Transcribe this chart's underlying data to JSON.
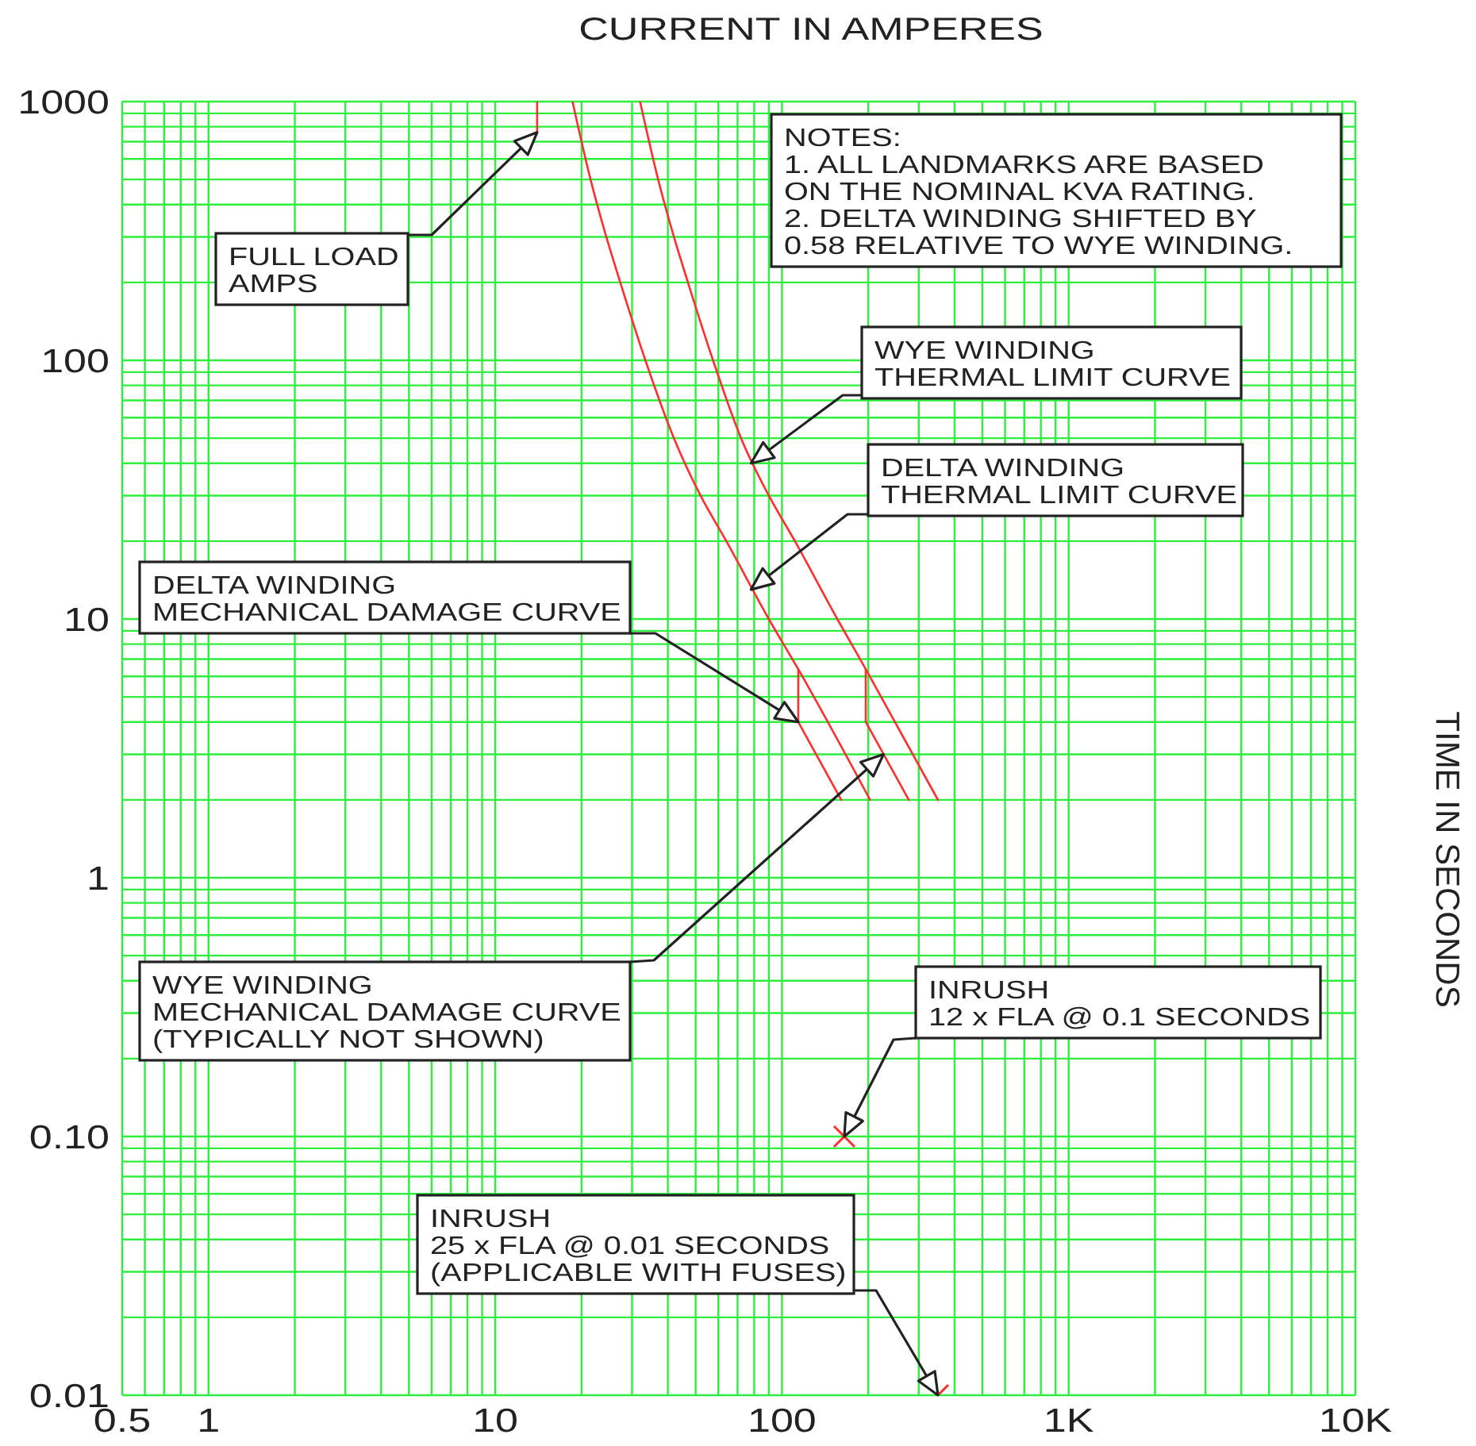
{
  "chart_data": {
    "type": "line",
    "xlabel": "CURRENT IN AMPERES",
    "ylabel": "TIME IN SECONDS",
    "log": "xy",
    "grid": true,
    "xlim": [
      0.5,
      10000
    ],
    "xticks": [
      0.5,
      {
        "value": 0.6,
        "label": null
      },
      {
        "value": 0.7,
        "label": null
      },
      {
        "value": 0.8,
        "label": null
      },
      {
        "value": 0.9,
        "label": null
      },
      1,
      {
        "value": 2,
        "label": null
      },
      {
        "value": 3,
        "label": null
      },
      {
        "value": 4,
        "label": null
      },
      {
        "value": 5,
        "label": null
      },
      {
        "value": 6,
        "label": null
      },
      {
        "value": 7,
        "label": null
      },
      {
        "value": 8,
        "label": null
      },
      {
        "value": 9,
        "label": null
      },
      10,
      {
        "value": 20,
        "label": null
      },
      {
        "value": 30,
        "label": null
      },
      {
        "value": 40,
        "label": null
      },
      {
        "value": 50,
        "label": null
      },
      {
        "value": 60,
        "label": null
      },
      {
        "value": 70,
        "label": null
      },
      {
        "value": 80,
        "label": null
      },
      {
        "value": 90,
        "label": null
      },
      100,
      {
        "value": 200,
        "label": null
      },
      {
        "value": 300,
        "label": null
      },
      {
        "value": 400,
        "label": null
      },
      {
        "value": 500,
        "label": null
      },
      {
        "value": 600,
        "label": null
      },
      {
        "value": 700,
        "label": null
      },
      {
        "value": 800,
        "label": null
      },
      {
        "value": 900,
        "label": null
      },
      {
        "value": 1000,
        "label": "1K"
      },
      {
        "value": 2000,
        "label": null
      },
      {
        "value": 3000,
        "label": null
      },
      {
        "value": 4000,
        "label": null
      },
      {
        "value": 5000,
        "label": null
      },
      {
        "value": 6000,
        "label": null
      },
      {
        "value": 7000,
        "label": null
      },
      {
        "value": 8000,
        "label": null
      },
      {
        "value": 9000,
        "label": null
      },
      {
        "value": 10000,
        "label": "10K"
      }
    ],
    "ylim": [
      0.01,
      1000
    ],
    "yticks": [
      0.01,
      {
        "value": 0.02,
        "label": null
      },
      {
        "value": 0.03,
        "label": null
      },
      {
        "value": 0.04,
        "label": null
      },
      {
        "value": 0.05,
        "label": null
      },
      {
        "value": 0.06,
        "label": null
      },
      {
        "value": 0.07,
        "label": null
      },
      {
        "value": 0.08,
        "label": null
      },
      {
        "value": 0.09,
        "label": null
      },
      {
        "value": 0.1,
        "label": "0.10"
      },
      {
        "value": 0.2,
        "label": null
      },
      {
        "value": 0.3,
        "label": null
      },
      {
        "value": 0.4,
        "label": null
      },
      {
        "value": 0.5,
        "label": null
      },
      {
        "value": 0.6,
        "label": null
      },
      {
        "value": 0.7,
        "label": null
      },
      {
        "value": 0.8,
        "label": null
      },
      {
        "value": 0.9,
        "label": null
      },
      1,
      {
        "value": 2,
        "label": null
      },
      {
        "value": 3,
        "label": null
      },
      {
        "value": 4,
        "label": null
      },
      {
        "value": 5,
        "label": null
      },
      {
        "value": 6,
        "label": null
      },
      {
        "value": 7,
        "label": null
      },
      {
        "value": 8,
        "label": null
      },
      {
        "value": 9,
        "label": null
      },
      10,
      {
        "value": 20,
        "label": null
      },
      {
        "value": 30,
        "label": null
      },
      {
        "value": 40,
        "label": null
      },
      {
        "value": 50,
        "label": null
      },
      {
        "value": 60,
        "label": null
      },
      {
        "value": 70,
        "label": null
      },
      {
        "value": 80,
        "label": null
      },
      {
        "value": 90,
        "label": null
      },
      100,
      {
        "value": 200,
        "label": null
      },
      {
        "value": 300,
        "label": null
      },
      {
        "value": 400,
        "label": null
      },
      {
        "value": 500,
        "label": null
      },
      {
        "value": 600,
        "label": null
      },
      {
        "value": 700,
        "label": null
      },
      {
        "value": 800,
        "label": null
      },
      {
        "value": 900,
        "label": null
      },
      1000
    ],
    "series": [
      {
        "color": "#ff3030",
        "x": [
          14,
          14
        ],
        "values": [
          1000,
          760
        ]
      },
      {
        "color": "#ff3030",
        "x": [
          32,
          37,
          42,
          47,
          57.5,
          72,
          90,
          111,
          156,
          196,
          350
        ],
        "values": [
          1000,
          500,
          300,
          200,
          100,
          50,
          30,
          20,
          10,
          6.4,
          2
        ]
      },
      {
        "color": "#ff3030",
        "x": [
          18.6,
          21.5,
          24.4,
          27.3,
          33.4,
          42,
          52,
          64,
          90,
          114,
          203
        ],
        "values": [
          1000,
          500,
          300,
          200,
          100,
          50,
          30,
          20,
          10,
          6.4,
          2
        ]
      },
      {
        "color": "#ff3030",
        "x": [
          114,
          114,
          161
        ],
        "values": [
          6.4,
          4,
          2
        ]
      },
      {
        "color": "#ff3030",
        "x": [
          196,
          196,
          277
        ],
        "values": [
          6.4,
          4,
          2
        ]
      },
      {
        "type": "scatter",
        "color": "#ff3030",
        "marker": "cross",
        "x": [
          165,
          350
        ],
        "values": [
          0.1,
          0.01
        ]
      }
    ],
    "annotations": [
      {
        "text": "FULL LOAD\nAMPS",
        "x": 14,
        "y": 760
      },
      "NOTES:\n1. ALL LANDMARKS ARE BASED\nON THE NOMINAL KVA RATING.\n2. DELTA WINDING SHIFTED BY\n0.58 RELATIVE TO WYE WINDING.",
      {
        "text": "WYE WINDING\nTHERMAL LIMIT CURVE",
        "x": 78,
        "y": 40
      },
      {
        "text": "DELTA WINDING\nTHERMAL LIMIT CURVE",
        "x": 78,
        "y": 13
      },
      {
        "text": "DELTA WINDING\nMECHANICAL DAMAGE CURVE",
        "x": 114,
        "y": 4
      },
      {
        "text": "WYE WINDING\nMECHANICAL DAMAGE CURVE\n(TYPICALLY NOT SHOWN)",
        "x": 226,
        "y": 3
      },
      {
        "text": "INRUSH\n12 x FLA @ 0.1 SECONDS",
        "x": 165,
        "y": 0.1
      },
      {
        "text": "INRUSH\n25 x FLA @ 0.01 SECONDS\n(APPLICABLE WITH FUSES)",
        "x": 350,
        "y": 0.01
      }
    ]
  }
}
